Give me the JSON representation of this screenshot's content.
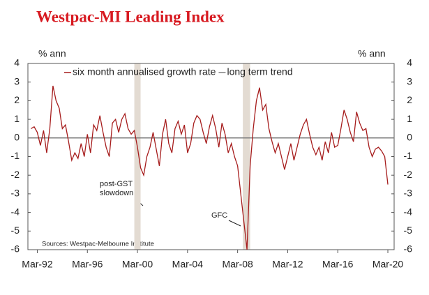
{
  "chart_data": {
    "type": "line",
    "title": "Westpac-MI Leading Index",
    "y_label": "% ann",
    "y2_label": "% ann",
    "xlim": [
      "1991-06",
      "2020-09"
    ],
    "xticks": [
      {
        "value": "1992-03",
        "label": "Mar-92"
      },
      {
        "value": "1996-03",
        "label": "Mar-96"
      },
      {
        "value": "2000-03",
        "label": "Mar-00"
      },
      {
        "value": "2004-03",
        "label": "Mar-04"
      },
      {
        "value": "2008-03",
        "label": "Mar-08"
      },
      {
        "value": "2012-03",
        "label": "Mar-12"
      },
      {
        "value": "2016-03",
        "label": "Mar-16"
      },
      {
        "value": "2020-03",
        "label": "Mar-20"
      }
    ],
    "ylim": [
      -6,
      4
    ],
    "yticks": [
      -6,
      -5,
      -4,
      -3,
      -2,
      -1,
      0,
      1,
      2,
      3,
      4
    ],
    "y2lim": [
      -6,
      4
    ],
    "y2ticks": [
      -6,
      -5,
      -4,
      -3,
      -2,
      -1,
      0,
      1,
      2,
      3,
      4
    ],
    "x": [
      "1991-09",
      "1991-12",
      "1992-03",
      "1992-06",
      "1992-09",
      "1992-12",
      "1993-03",
      "1993-06",
      "1993-09",
      "1993-12",
      "1994-03",
      "1994-06",
      "1994-09",
      "1994-12",
      "1995-03",
      "1995-06",
      "1995-09",
      "1995-12",
      "1996-03",
      "1996-06",
      "1996-09",
      "1996-12",
      "1997-03",
      "1997-06",
      "1997-09",
      "1997-12",
      "1998-03",
      "1998-06",
      "1998-09",
      "1998-12",
      "1999-03",
      "1999-06",
      "1999-09",
      "1999-12",
      "2000-03",
      "2000-06",
      "2000-09",
      "2000-12",
      "2001-03",
      "2001-06",
      "2001-09",
      "2001-12",
      "2002-03",
      "2002-06",
      "2002-09",
      "2002-12",
      "2003-03",
      "2003-06",
      "2003-09",
      "2003-12",
      "2004-03",
      "2004-06",
      "2004-09",
      "2004-12",
      "2005-03",
      "2005-06",
      "2005-09",
      "2005-12",
      "2006-03",
      "2006-06",
      "2006-09",
      "2006-12",
      "2007-03",
      "2007-06",
      "2007-09",
      "2007-12",
      "2008-03",
      "2008-06",
      "2008-09",
      "2008-12",
      "2009-03",
      "2009-06",
      "2009-09",
      "2009-12",
      "2010-03",
      "2010-06",
      "2010-09",
      "2010-12",
      "2011-03",
      "2011-06",
      "2011-09",
      "2011-12",
      "2012-03",
      "2012-06",
      "2012-09",
      "2012-12",
      "2013-03",
      "2013-06",
      "2013-09",
      "2013-12",
      "2014-03",
      "2014-06",
      "2014-09",
      "2014-12",
      "2015-03",
      "2015-06",
      "2015-09",
      "2015-12",
      "2016-03",
      "2016-06",
      "2016-09",
      "2016-12",
      "2017-03",
      "2017-06",
      "2017-09",
      "2017-12",
      "2018-03",
      "2018-06",
      "2018-09",
      "2018-12",
      "2019-03",
      "2019-06",
      "2019-09",
      "2019-12",
      "2020-03"
    ],
    "series": [
      {
        "name": "six month annualised growth rate",
        "color": "#a61c1c",
        "values": [
          0.5,
          0.6,
          0.3,
          -0.4,
          0.4,
          -0.8,
          0.5,
          2.8,
          2.0,
          1.6,
          0.5,
          0.7,
          -0.2,
          -1.2,
          -0.8,
          -1.1,
          -0.3,
          -1.0,
          0.2,
          -0.8,
          0.7,
          0.4,
          1.2,
          0.3,
          -0.5,
          -1.0,
          0.8,
          1.0,
          0.3,
          1.0,
          1.3,
          0.5,
          0.2,
          0.4,
          -0.5,
          -1.6,
          -2.0,
          -1.0,
          -0.5,
          0.3,
          -0.6,
          -1.5,
          0.2,
          1.0,
          -0.3,
          -0.8,
          0.5,
          0.9,
          0.2,
          0.7,
          -0.8,
          -0.3,
          0.8,
          1.2,
          1.0,
          0.3,
          -0.3,
          0.6,
          1.2,
          0.5,
          -0.5,
          0.8,
          0.2,
          -0.8,
          -0.3,
          -1.0,
          -1.5,
          -3.0,
          -4.5,
          -6.0,
          -1.5,
          0.5,
          2.0,
          2.7,
          1.5,
          1.8,
          0.5,
          -0.2,
          -0.8,
          -0.3,
          -1.0,
          -1.7,
          -1.0,
          -0.3,
          -1.2,
          -0.5,
          0.2,
          0.7,
          1.0,
          0.2,
          -0.5,
          -0.9,
          -0.5,
          -1.2,
          -0.2,
          -0.8,
          0.3,
          -0.5,
          -0.4,
          0.5,
          1.5,
          1.0,
          0.3,
          -0.2,
          1.4,
          0.8,
          0.4,
          0.5,
          -0.5,
          -1.0,
          -0.6,
          -0.5,
          -0.7,
          -1.0,
          -2.5
        ]
      },
      {
        "name": "long term trend",
        "color": "#7f7f7f",
        "x": [
          "1991-06",
          "2020-09"
        ],
        "values": [
          0,
          0
        ]
      }
    ],
    "shaded_periods": [
      [
        "1999-12",
        "2000-06"
      ],
      [
        "2008-08",
        "2009-03"
      ]
    ],
    "shade_color": "#e3dbd2",
    "annotations": {
      "gst": [
        "post-GST",
        "slowdown"
      ],
      "gfc": "GFC",
      "source": "Sources:  Westpac-Melbourne  Institute"
    }
  }
}
